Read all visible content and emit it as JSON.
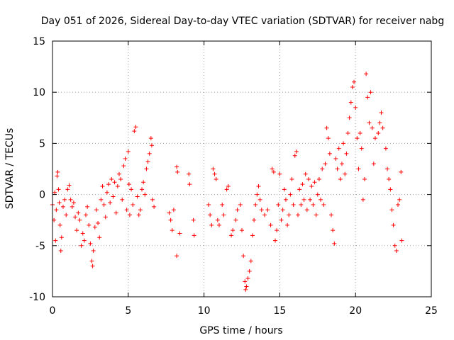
{
  "chart_data": {
    "type": "scatter",
    "title": "Day 051 of 2026, Sidereal Day-to-day VTEC variation (SDTVAR) for receiver nabg",
    "xlabel": "GPS time / hours",
    "ylabel": "SDTVAR / TECUs",
    "xlim": [
      0,
      25
    ],
    "ylim": [
      -10,
      15
    ],
    "grid": true,
    "marker": "+",
    "color": "#ff0000",
    "x_ticks": [
      0,
      5,
      10,
      15,
      20,
      25
    ],
    "y_ticks": [
      -10,
      -5,
      0,
      5,
      10,
      15
    ],
    "series": [
      {
        "name": "SDTVAR",
        "points": [
          [
            0.0,
            -1.0
          ],
          [
            0.1,
            -2.5
          ],
          [
            0.15,
            0.2
          ],
          [
            0.2,
            -4.5
          ],
          [
            0.25,
            -1.5
          ],
          [
            0.3,
            1.8
          ],
          [
            0.35,
            2.2
          ],
          [
            0.4,
            0.5
          ],
          [
            0.45,
            -0.8
          ],
          [
            0.5,
            -3.0
          ],
          [
            0.55,
            -5.5
          ],
          [
            0.6,
            -4.2
          ],
          [
            0.7,
            -1.2
          ],
          [
            0.8,
            -0.5
          ],
          [
            0.9,
            -2.0
          ],
          [
            1.0,
            0.5
          ],
          [
            1.1,
            0.9
          ],
          [
            1.2,
            -0.5
          ],
          [
            1.3,
            -1.2
          ],
          [
            1.4,
            -0.8
          ],
          [
            1.5,
            -2.2
          ],
          [
            1.6,
            -3.5
          ],
          [
            1.7,
            -1.8
          ],
          [
            1.8,
            -2.5
          ],
          [
            1.9,
            -5.0
          ],
          [
            2.0,
            -3.8
          ],
          [
            2.1,
            -4.5
          ],
          [
            2.2,
            -2.0
          ],
          [
            2.3,
            -1.2
          ],
          [
            2.4,
            -3.0
          ],
          [
            2.5,
            -4.8
          ],
          [
            2.6,
            -6.5
          ],
          [
            2.65,
            -7.0
          ],
          [
            2.7,
            -5.5
          ],
          [
            2.8,
            -3.2
          ],
          [
            2.9,
            -1.5
          ],
          [
            3.0,
            -2.8
          ],
          [
            3.1,
            -4.2
          ],
          [
            3.2,
            -0.5
          ],
          [
            3.3,
            0.8
          ],
          [
            3.4,
            -1.0
          ],
          [
            3.5,
            -2.2
          ],
          [
            3.6,
            0.2
          ],
          [
            3.7,
            1.0
          ],
          [
            3.8,
            -0.8
          ],
          [
            3.9,
            1.5
          ],
          [
            4.0,
            -0.2
          ],
          [
            4.1,
            1.2
          ],
          [
            4.2,
            -1.8
          ],
          [
            4.3,
            0.8
          ],
          [
            4.4,
            2.0
          ],
          [
            4.5,
            1.5
          ],
          [
            4.6,
            -0.5
          ],
          [
            4.7,
            2.8
          ],
          [
            4.8,
            3.5
          ],
          [
            4.9,
            -1.5
          ],
          [
            5.0,
            4.2
          ],
          [
            5.05,
            1.0
          ],
          [
            5.1,
            -2.0
          ],
          [
            5.2,
            0.5
          ],
          [
            5.3,
            -1.0
          ],
          [
            5.4,
            6.2
          ],
          [
            5.5,
            6.6
          ],
          [
            5.6,
            -0.2
          ],
          [
            5.7,
            -2.0
          ],
          [
            5.8,
            -1.5
          ],
          [
            5.9,
            0.5
          ],
          [
            6.0,
            1.2
          ],
          [
            6.1,
            0.0
          ],
          [
            6.2,
            2.5
          ],
          [
            6.3,
            3.2
          ],
          [
            6.4,
            4.0
          ],
          [
            6.5,
            5.5
          ],
          [
            6.55,
            4.8
          ],
          [
            6.6,
            -0.5
          ],
          [
            6.7,
            -1.2
          ],
          [
            7.7,
            -1.8
          ],
          [
            7.8,
            -2.5
          ],
          [
            7.9,
            -3.5
          ],
          [
            8.0,
            -1.5
          ],
          [
            8.2,
            2.7
          ],
          [
            8.25,
            2.2
          ],
          [
            8.2,
            -6.0
          ],
          [
            8.4,
            -3.8
          ],
          [
            9.0,
            2.0
          ],
          [
            9.05,
            1.0
          ],
          [
            9.3,
            -2.5
          ],
          [
            9.35,
            -4.0
          ],
          [
            10.3,
            -1.0
          ],
          [
            10.4,
            -2.0
          ],
          [
            10.5,
            -3.0
          ],
          [
            10.6,
            2.5
          ],
          [
            10.7,
            2.0
          ],
          [
            10.8,
            1.5
          ],
          [
            10.9,
            -2.5
          ],
          [
            11.0,
            -3.0
          ],
          [
            11.2,
            -1.0
          ],
          [
            11.3,
            -2.0
          ],
          [
            11.5,
            0.5
          ],
          [
            11.6,
            0.8
          ],
          [
            11.8,
            -4.0
          ],
          [
            11.9,
            -3.5
          ],
          [
            12.1,
            -2.5
          ],
          [
            12.2,
            -1.5
          ],
          [
            12.4,
            -1.0
          ],
          [
            12.5,
            -3.5
          ],
          [
            12.6,
            -6.0
          ],
          [
            12.7,
            -8.5
          ],
          [
            12.75,
            -9.3
          ],
          [
            12.8,
            -9.0
          ],
          [
            12.9,
            -8.2
          ],
          [
            13.0,
            -7.5
          ],
          [
            13.1,
            -6.5
          ],
          [
            13.2,
            -4.0
          ],
          [
            13.3,
            -2.5
          ],
          [
            13.4,
            -1.0
          ],
          [
            13.5,
            0.0
          ],
          [
            13.6,
            0.8
          ],
          [
            13.7,
            -0.5
          ],
          [
            13.8,
            -1.5
          ],
          [
            14.0,
            -2.0
          ],
          [
            14.2,
            -1.5
          ],
          [
            14.4,
            -3.0
          ],
          [
            14.5,
            2.5
          ],
          [
            14.6,
            2.2
          ],
          [
            14.7,
            -4.5
          ],
          [
            14.8,
            -3.5
          ],
          [
            14.9,
            -1.0
          ],
          [
            15.0,
            2.0
          ],
          [
            15.1,
            -2.5
          ],
          [
            15.2,
            -1.5
          ],
          [
            15.3,
            0.5
          ],
          [
            15.4,
            -0.5
          ],
          [
            15.5,
            -3.0
          ],
          [
            15.6,
            -2.0
          ],
          [
            15.7,
            0.0
          ],
          [
            15.8,
            1.5
          ],
          [
            15.9,
            -1.0
          ],
          [
            16.0,
            3.8
          ],
          [
            16.1,
            4.2
          ],
          [
            16.2,
            -2.0
          ],
          [
            16.3,
            0.5
          ],
          [
            16.4,
            -1.0
          ],
          [
            16.5,
            1.0
          ],
          [
            16.6,
            -0.5
          ],
          [
            16.7,
            2.0
          ],
          [
            16.8,
            -1.5
          ],
          [
            16.9,
            1.5
          ],
          [
            17.0,
            -0.5
          ],
          [
            17.1,
            0.8
          ],
          [
            17.2,
            -1.0
          ],
          [
            17.3,
            1.2
          ],
          [
            17.4,
            -2.0
          ],
          [
            17.5,
            0.0
          ],
          [
            17.6,
            1.5
          ],
          [
            17.7,
            -0.5
          ],
          [
            17.8,
            2.5
          ],
          [
            17.9,
            -1.0
          ],
          [
            18.0,
            3.0
          ],
          [
            18.1,
            6.5
          ],
          [
            18.2,
            5.5
          ],
          [
            18.3,
            4.0
          ],
          [
            18.4,
            -2.0
          ],
          [
            18.5,
            -3.5
          ],
          [
            18.6,
            -4.8
          ],
          [
            18.7,
            3.5
          ],
          [
            18.8,
            2.5
          ],
          [
            18.9,
            4.5
          ],
          [
            19.0,
            1.5
          ],
          [
            19.1,
            3.0
          ],
          [
            19.2,
            5.0
          ],
          [
            19.3,
            2.0
          ],
          [
            19.4,
            4.0
          ],
          [
            19.5,
            6.0
          ],
          [
            19.6,
            7.5
          ],
          [
            19.7,
            9.0
          ],
          [
            19.8,
            10.5
          ],
          [
            19.9,
            11.0
          ],
          [
            20.0,
            8.5
          ],
          [
            20.1,
            5.5
          ],
          [
            20.2,
            2.5
          ],
          [
            20.3,
            6.0
          ],
          [
            20.4,
            4.5
          ],
          [
            20.5,
            -0.5
          ],
          [
            20.6,
            1.5
          ],
          [
            20.7,
            11.8
          ],
          [
            20.8,
            9.5
          ],
          [
            20.9,
            7.0
          ],
          [
            21.0,
            10.0
          ],
          [
            21.1,
            6.5
          ],
          [
            21.2,
            3.0
          ],
          [
            21.3,
            5.5
          ],
          [
            21.5,
            6.0
          ],
          [
            21.6,
            7.0
          ],
          [
            21.7,
            8.0
          ],
          [
            21.8,
            6.5
          ],
          [
            22.0,
            4.5
          ],
          [
            22.1,
            2.5
          ],
          [
            22.2,
            1.5
          ],
          [
            22.3,
            0.5
          ],
          [
            22.4,
            -1.5
          ],
          [
            22.5,
            -3.0
          ],
          [
            22.6,
            -5.0
          ],
          [
            22.7,
            -5.5
          ],
          [
            22.8,
            -1.0
          ],
          [
            22.9,
            -0.5
          ],
          [
            23.0,
            2.2
          ],
          [
            23.05,
            -4.5
          ]
        ]
      }
    ]
  }
}
